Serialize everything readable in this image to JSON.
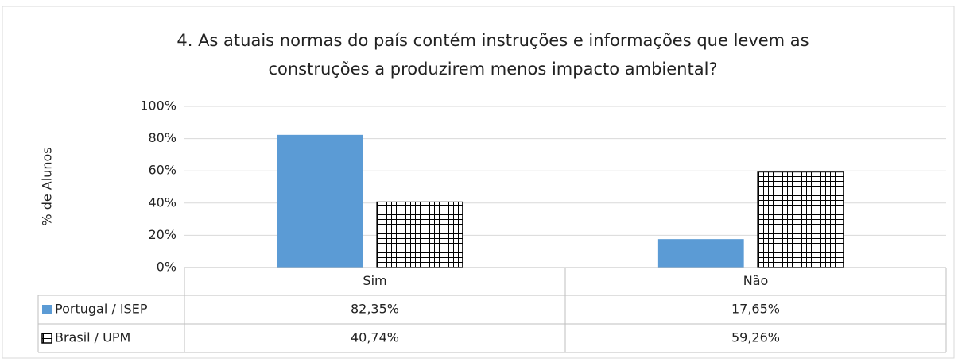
{
  "chart_data": {
    "type": "bar",
    "title": [
      "4. As atuais normas do país contém instruções e informações que levem as",
      "construções a produzirem menos impacto ambiental?"
    ],
    "y_label": "% de Alunos",
    "categories": [
      "Sim",
      "Não"
    ],
    "series": [
      {
        "name": "Portugal / ISEP",
        "color": "#5b9bd5",
        "values": [
          82.35,
          17.65
        ],
        "value_labels": [
          "82,35%",
          "17,65%"
        ]
      },
      {
        "name": "Brasil / UPM",
        "color": "#000000",
        "pattern": "grid",
        "values": [
          40.74,
          59.26
        ],
        "value_labels": [
          "40,74%",
          "59,26%"
        ]
      }
    ],
    "ylim": [
      0,
      100
    ],
    "yticks": [
      {
        "value": 0,
        "label": "0%"
      },
      {
        "value": 20,
        "label": "20%"
      },
      {
        "value": 40,
        "label": "40%"
      },
      {
        "value": 60,
        "label": "60%"
      },
      {
        "value": 80,
        "label": "80%"
      },
      {
        "value": 100,
        "label": "100%"
      }
    ],
    "grid": true,
    "data_table": true
  }
}
